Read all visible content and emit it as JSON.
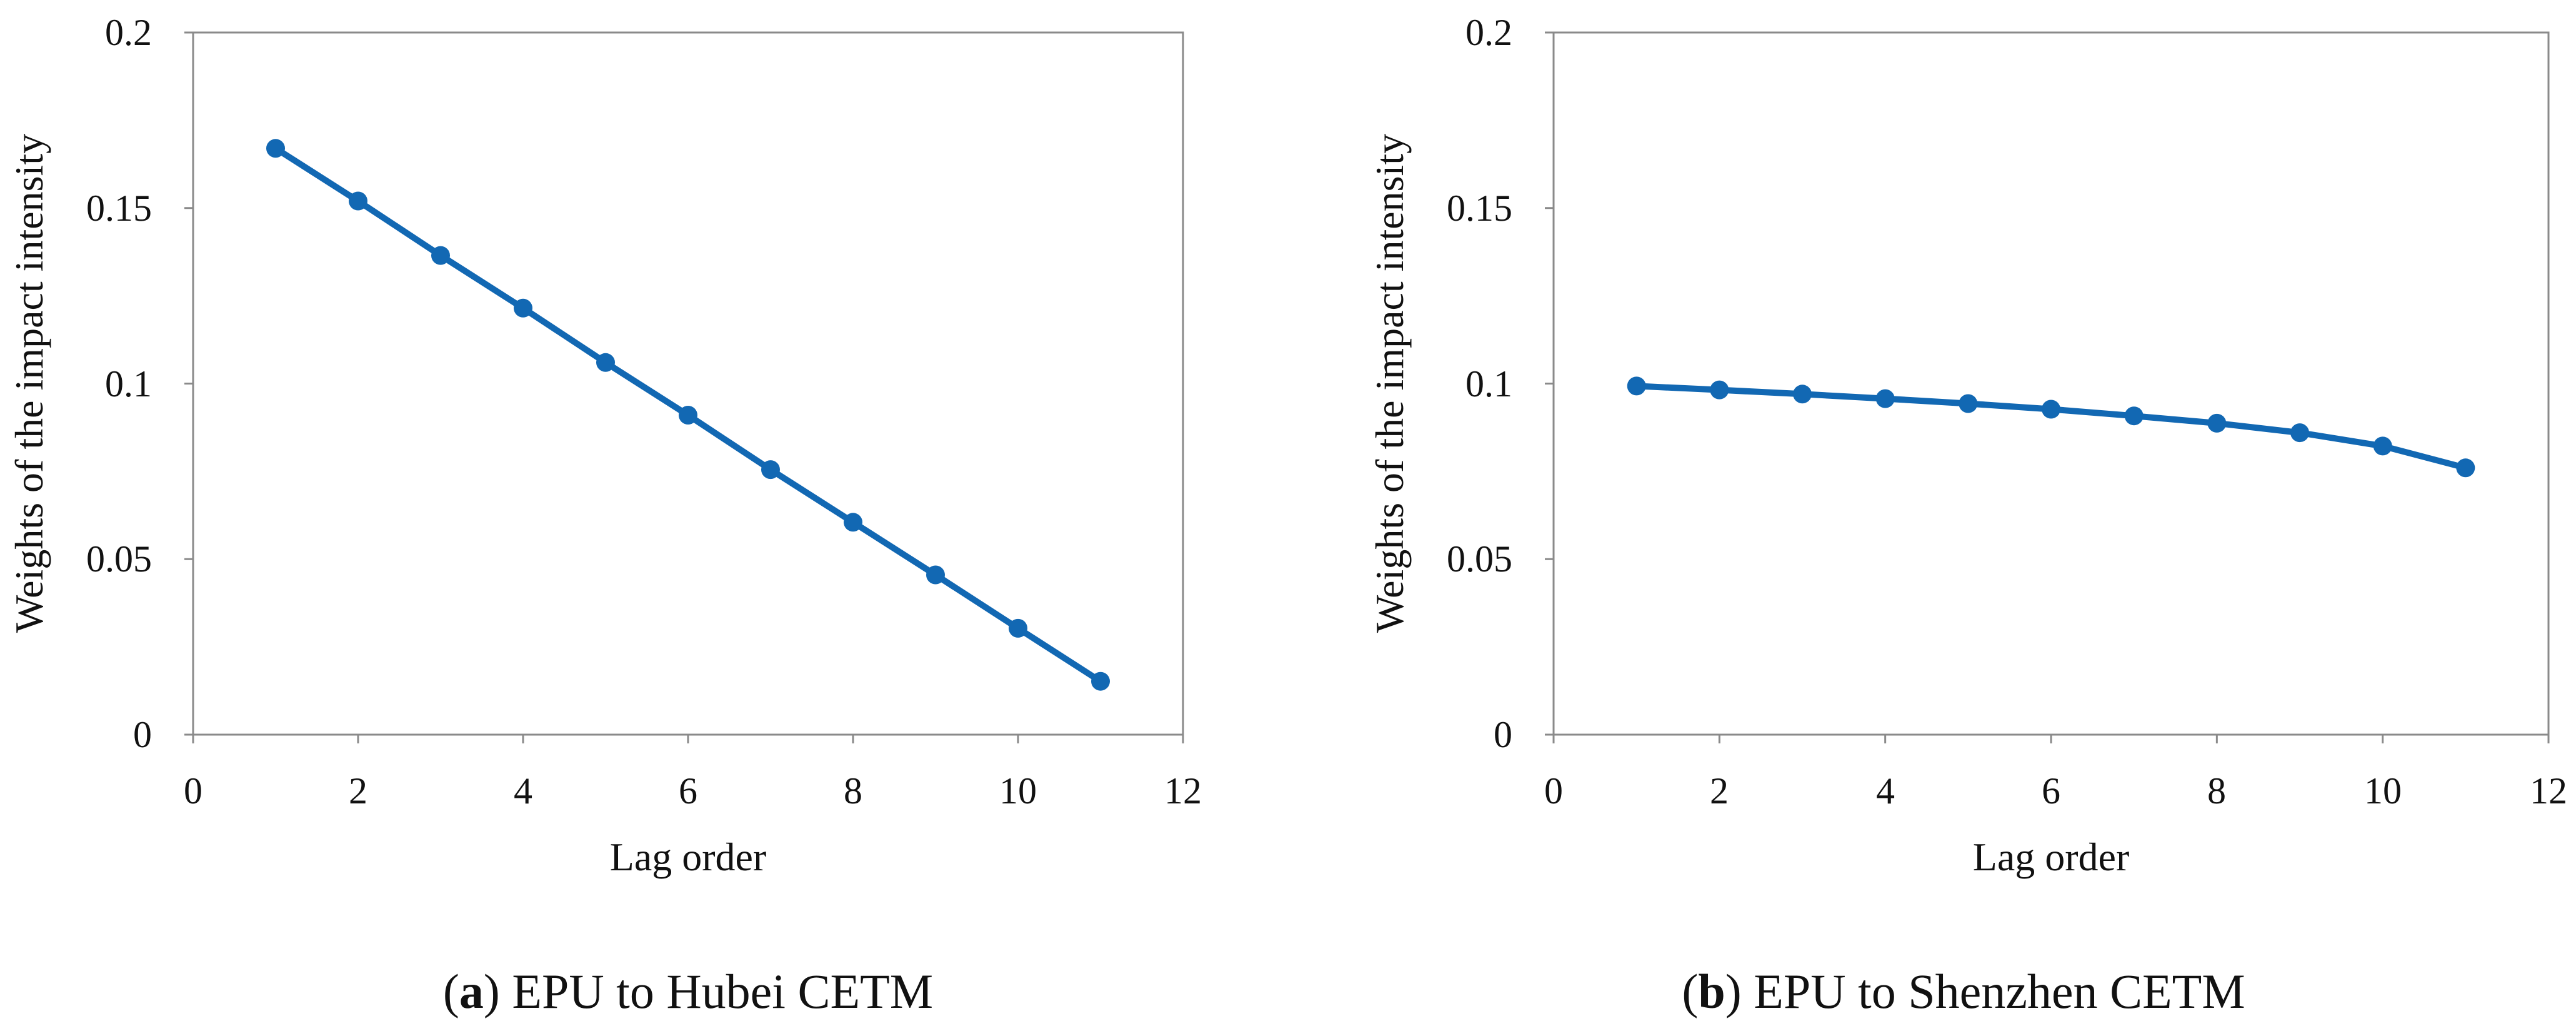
{
  "chart_data": [
    {
      "type": "line",
      "caption_letter": "a",
      "caption_text": " EPU to Hubei CETM",
      "xlabel": "Lag order",
      "ylabel": "Weights of the impact intensity",
      "xlim": [
        0,
        12
      ],
      "ylim": [
        0,
        0.2
      ],
      "x_ticks": [
        "0",
        "2",
        "4",
        "6",
        "8",
        "10",
        "12"
      ],
      "y_ticks": [
        "0",
        "0.05",
        "0.1",
        "0.15",
        "0.2"
      ],
      "series": [
        {
          "name": "EPU to Hubei CETM",
          "color": "#1268b3",
          "x": [
            1,
            2,
            3,
            4,
            5,
            6,
            7,
            8,
            9,
            10,
            11
          ],
          "values": [
            0.167,
            0.152,
            0.1365,
            0.1215,
            0.106,
            0.091,
            0.0755,
            0.0605,
            0.0455,
            0.0303,
            0.0152
          ]
        }
      ]
    },
    {
      "type": "line",
      "caption_letter": "b",
      "caption_text": " EPU to Shenzhen CETM",
      "xlabel": "Lag order",
      "ylabel": "Weights of the impact intensity",
      "xlim": [
        0,
        12
      ],
      "ylim": [
        0,
        0.2
      ],
      "x_ticks": [
        "0",
        "2",
        "4",
        "6",
        "8",
        "10",
        "12"
      ],
      "y_ticks": [
        "0",
        "0.05",
        "0.1",
        "0.15",
        "0.2"
      ],
      "series": [
        {
          "name": "EPU to Shenzhen CETM",
          "color": "#1268b3",
          "x": [
            1,
            2,
            3,
            4,
            5,
            6,
            7,
            8,
            9,
            10,
            11
          ],
          "values": [
            0.0993,
            0.0982,
            0.097,
            0.0957,
            0.0943,
            0.0927,
            0.0908,
            0.0887,
            0.086,
            0.0822,
            0.076
          ]
        }
      ]
    }
  ]
}
